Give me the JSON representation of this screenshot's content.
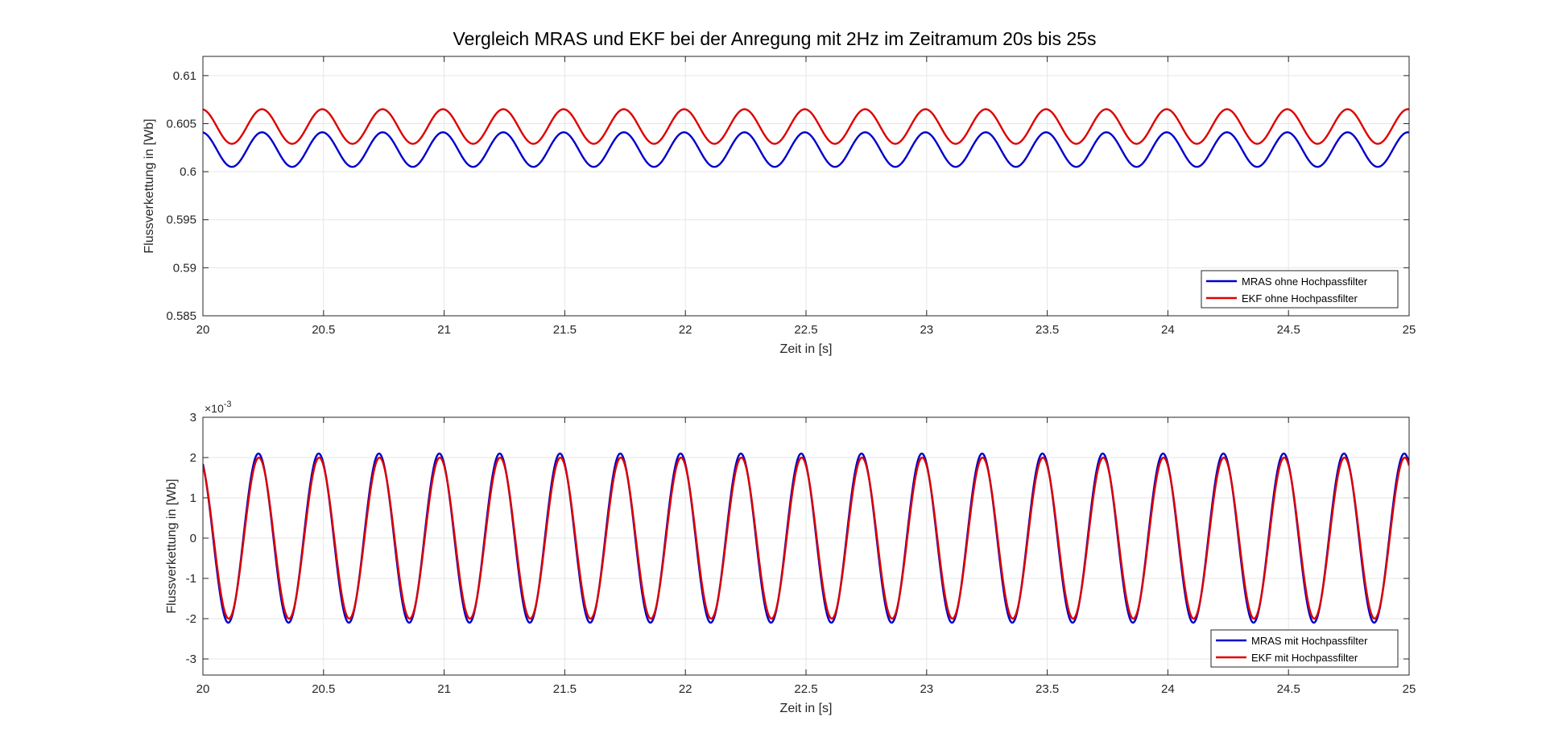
{
  "chart_data": {
    "title": "Vergleich MRAS und EKF bei der Anregung mit 2Hz im Zeitramum 20s bis 25s",
    "charts": [
      {
        "type": "line",
        "xlabel": "Zeit in [s]",
        "ylabel": "Flussverkettung in [Wb]",
        "xlim": [
          20,
          25
        ],
        "ylim": [
          0.585,
          0.612
        ],
        "xticks": [
          "20",
          "20.5",
          "21",
          "21.5",
          "22",
          "22.5",
          "23",
          "23.5",
          "24",
          "24.5",
          "25"
        ],
        "yticks": [
          "0.585",
          "0.59",
          "0.595",
          "0.6",
          "0.605",
          "0.61"
        ],
        "grid": true,
        "legend_position": "bottom-right",
        "frequency_hz": 4,
        "series": [
          {
            "name": "MRAS ohne Hochpassfilter",
            "color": "#0000cc",
            "offset": 0.6023,
            "amplitude": 0.0018,
            "phase_peak_x": 20.245
          },
          {
            "name": "EKF ohne Hochpassfilter",
            "color": "#dd0000",
            "offset": 0.6047,
            "amplitude": 0.0018,
            "phase_peak_x": 20.245
          }
        ]
      },
      {
        "type": "line",
        "xlabel": "Zeit in [s]",
        "ylabel": "Flussverkettung in [Wb]",
        "xlim": [
          20,
          25
        ],
        "ylim": [
          -0.0034,
          0.003
        ],
        "y_exponent_label": "×10",
        "y_exponent_power": "-3",
        "xticks": [
          "20",
          "20.5",
          "21",
          "21.5",
          "22",
          "22.5",
          "23",
          "23.5",
          "24",
          "24.5",
          "25"
        ],
        "yticks": [
          "-3",
          "-2",
          "-1",
          "0",
          "1",
          "2",
          "3"
        ],
        "grid": true,
        "legend_position": "bottom-right",
        "frequency_hz": 4,
        "series": [
          {
            "name": "MRAS mit Hochpassfilter",
            "color": "#0000cc",
            "offset": 0.0,
            "amplitude": 0.0021,
            "phase_peak_x": 20.23
          },
          {
            "name": "EKF mit Hochpassfilter",
            "color": "#dd0000",
            "offset": 0.0,
            "amplitude": 0.002,
            "phase_peak_x": 20.232
          }
        ]
      }
    ]
  }
}
